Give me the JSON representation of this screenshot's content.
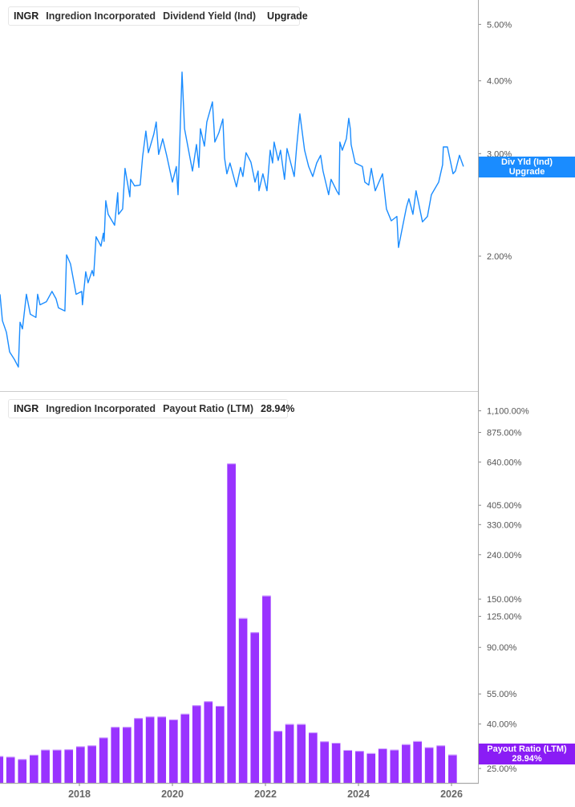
{
  "top_legend": {
    "ticker": "INGR",
    "company": "Ingredion Incorporated",
    "metric": "Dividend Yield (Ind)",
    "value": "Upgrade",
    "color": "#1a8cff"
  },
  "bottom_legend": {
    "ticker": "INGR",
    "company": "Ingredion Incorporated",
    "metric": "Payout Ratio (LTM)",
    "value": "28.94%",
    "color": "#8f2cff"
  },
  "top_tag": {
    "line1": "Div Yld (Ind)",
    "line2": "Upgrade",
    "color": "#1a8cff"
  },
  "bottom_tag": {
    "line1": "Payout Ratio (LTM)",
    "line2": "28.94%",
    "color": "#8a1cf5"
  },
  "chart_data": [
    {
      "type": "line",
      "title": "",
      "scale": "log",
      "series": [
        {
          "name": "Dividend Yield (Ind)",
          "points": [
            [
              "2016-04-17",
              1.72
            ],
            [
              "2016-05-06",
              1.55
            ],
            [
              "2016-06-07",
              1.48
            ],
            [
              "2016-07-02",
              1.37
            ],
            [
              "2016-08-08",
              1.33
            ],
            [
              "2016-09-09",
              1.29
            ],
            [
              "2016-09-22",
              1.54
            ],
            [
              "2016-10-11",
              1.5
            ],
            [
              "2016-11-11",
              1.72
            ],
            [
              "2016-12-12",
              1.59
            ],
            [
              "2017-01-25",
              1.57
            ],
            [
              "2017-02-07",
              1.72
            ],
            [
              "2017-02-26",
              1.65
            ],
            [
              "2017-04-17",
              1.67
            ],
            [
              "2017-05-31",
              1.74
            ],
            [
              "2017-07-02",
              1.69
            ],
            [
              "2017-07-21",
              1.63
            ],
            [
              "2017-09-09",
              1.61
            ],
            [
              "2017-09-22",
              2.01
            ],
            [
              "2017-10-23",
              1.94
            ],
            [
              "2017-12-06",
              1.72
            ],
            [
              "2018-01-19",
              1.74
            ],
            [
              "2018-01-25",
              1.65
            ],
            [
              "2018-02-20",
              1.88
            ],
            [
              "2018-03-10",
              1.8
            ],
            [
              "2018-04-11",
              1.89
            ],
            [
              "2018-04-23",
              1.85
            ],
            [
              "2018-05-12",
              2.16
            ],
            [
              "2018-06-19",
              2.08
            ],
            [
              "2018-07-08",
              2.19
            ],
            [
              "2018-07-14",
              2.12
            ],
            [
              "2018-07-27",
              2.49
            ],
            [
              "2018-08-15",
              2.36
            ],
            [
              "2018-10-04",
              2.26
            ],
            [
              "2018-10-29",
              2.57
            ],
            [
              "2018-11-04",
              2.36
            ],
            [
              "2018-12-06",
              2.41
            ],
            [
              "2018-12-25",
              2.83
            ],
            [
              "2019-02-01",
              2.53
            ],
            [
              "2019-02-07",
              2.71
            ],
            [
              "2019-03-10",
              2.64
            ],
            [
              "2019-04-23",
              2.65
            ],
            [
              "2019-05-12",
              2.96
            ],
            [
              "2019-06-07",
              3.28
            ],
            [
              "2019-06-26",
              3.01
            ],
            [
              "2019-08-08",
              3.24
            ],
            [
              "2019-08-27",
              3.4
            ],
            [
              "2019-09-15",
              2.99
            ],
            [
              "2019-10-17",
              3.18
            ],
            [
              "2019-11-17",
              2.98
            ],
            [
              "2020-01-01",
              2.68
            ],
            [
              "2020-02-01",
              2.85
            ],
            [
              "2020-02-14",
              2.55
            ],
            [
              "2020-03-17",
              4.14
            ],
            [
              "2020-04-05",
              3.31
            ],
            [
              "2020-06-07",
              2.8
            ],
            [
              "2020-07-08",
              3.11
            ],
            [
              "2020-07-27",
              2.84
            ],
            [
              "2020-08-08",
              3.31
            ],
            [
              "2020-09-09",
              3.09
            ],
            [
              "2020-09-28",
              3.4
            ],
            [
              "2020-11-11",
              3.68
            ],
            [
              "2020-11-30",
              3.14
            ],
            [
              "2021-01-01",
              3.26
            ],
            [
              "2021-02-01",
              3.44
            ],
            [
              "2021-02-14",
              2.95
            ],
            [
              "2021-03-04",
              2.77
            ],
            [
              "2021-03-29",
              2.89
            ],
            [
              "2021-05-18",
              2.63
            ],
            [
              "2021-06-19",
              2.84
            ],
            [
              "2021-07-08",
              2.74
            ],
            [
              "2021-08-02",
              3.01
            ],
            [
              "2021-09-09",
              2.9
            ],
            [
              "2021-10-11",
              2.68
            ],
            [
              "2021-11-04",
              2.8
            ],
            [
              "2021-11-11",
              2.59
            ],
            [
              "2021-12-12",
              2.77
            ],
            [
              "2022-01-13",
              2.59
            ],
            [
              "2022-02-07",
              3.04
            ],
            [
              "2022-02-26",
              2.89
            ],
            [
              "2022-03-10",
              3.14
            ],
            [
              "2022-04-11",
              2.92
            ],
            [
              "2022-04-29",
              3.04
            ],
            [
              "2022-05-31",
              2.71
            ],
            [
              "2022-06-19",
              3.06
            ],
            [
              "2022-08-15",
              2.74
            ],
            [
              "2022-09-03",
              3.08
            ],
            [
              "2022-09-28",
              3.51
            ],
            [
              "2022-11-04",
              3.04
            ],
            [
              "2022-12-06",
              2.85
            ],
            [
              "2023-01-07",
              2.74
            ],
            [
              "2023-02-07",
              2.89
            ],
            [
              "2023-03-10",
              2.98
            ],
            [
              "2023-03-29",
              2.8
            ],
            [
              "2023-05-12",
              2.55
            ],
            [
              "2023-05-31",
              2.71
            ],
            [
              "2023-07-14",
              2.59
            ],
            [
              "2023-08-02",
              2.55
            ],
            [
              "2023-08-08",
              3.14
            ],
            [
              "2023-08-27",
              3.04
            ],
            [
              "2023-09-28",
              3.18
            ],
            [
              "2023-10-17",
              3.45
            ],
            [
              "2023-10-29",
              3.31
            ],
            [
              "2023-11-04",
              3.11
            ],
            [
              "2023-12-06",
              2.89
            ],
            [
              "2024-02-01",
              2.85
            ],
            [
              "2024-02-20",
              2.68
            ],
            [
              "2024-03-22",
              2.65
            ],
            [
              "2024-04-11",
              2.83
            ],
            [
              "2024-05-12",
              2.59
            ],
            [
              "2024-07-08",
              2.77
            ],
            [
              "2024-08-08",
              2.41
            ],
            [
              "2024-09-15",
              2.3
            ],
            [
              "2024-10-29",
              2.34
            ],
            [
              "2024-11-11",
              2.07
            ],
            [
              "2024-12-12",
              2.24
            ],
            [
              "2025-01-13",
              2.43
            ],
            [
              "2025-02-01",
              2.51
            ],
            [
              "2025-03-04",
              2.36
            ],
            [
              "2025-03-29",
              2.59
            ],
            [
              "2025-05-18",
              2.29
            ],
            [
              "2025-06-26",
              2.34
            ],
            [
              "2025-07-27",
              2.55
            ],
            [
              "2025-09-22",
              2.68
            ],
            [
              "2025-10-23",
              2.87
            ],
            [
              "2025-10-29",
              3.08
            ],
            [
              "2025-11-30",
              3.08
            ],
            [
              "2026-01-13",
              2.77
            ],
            [
              "2026-02-01",
              2.8
            ],
            [
              "2026-03-04",
              2.98
            ],
            [
              "2026-04-05",
              2.85
            ]
          ]
        }
      ],
      "y_ticks": [
        {
          "value": 5,
          "label": "5.00%"
        },
        {
          "value": 4,
          "label": "4.00%"
        },
        {
          "value": 3,
          "label": "3.00%"
        },
        {
          "value": 2,
          "label": "2.00%"
        }
      ],
      "ylim": [
        1.25,
        5.6
      ],
      "grid": false
    },
    {
      "type": "bar",
      "title": "",
      "scale": "log",
      "series": [
        {
          "name": "Payout Ratio (LTM)",
          "categories": [
            "2016-03-31",
            "2016-06-30",
            "2016-09-30",
            "2016-12-31",
            "2017-03-31",
            "2017-06-30",
            "2017-09-30",
            "2017-12-31",
            "2018-03-31",
            "2018-06-30",
            "2018-09-30",
            "2018-12-31",
            "2019-03-31",
            "2019-06-30",
            "2019-09-30",
            "2019-12-31",
            "2020-03-31",
            "2020-06-30",
            "2020-09-30",
            "2020-12-31",
            "2021-03-31",
            "2021-06-30",
            "2021-09-30",
            "2021-12-31",
            "2022-03-31",
            "2022-06-30",
            "2022-09-30",
            "2022-12-31",
            "2023-03-31",
            "2023-06-30",
            "2023-09-30",
            "2023-12-31",
            "2024-03-31",
            "2024-06-30",
            "2024-09-30",
            "2024-12-31",
            "2025-03-31",
            "2025-06-30",
            "2025-09-30",
            "2025-12-31"
          ],
          "values": [
            28.5,
            28.3,
            27.6,
            28.9,
            30.5,
            30.5,
            30.6,
            31.6,
            31.9,
            34.7,
            38.8,
            38.8,
            42.6,
            43.3,
            43.3,
            42.0,
            44.6,
            48.8,
            50.9,
            48.5,
            630,
            122.7,
            105.7,
            155.7,
            37.2,
            40.0,
            40.0,
            36.6,
            33.3,
            32.8,
            30.4,
            30.1,
            29.4,
            30.9,
            30.5,
            32.3,
            33.4,
            31.3,
            31.9,
            28.94
          ]
        }
      ],
      "y_ticks": [
        {
          "value": 1100,
          "label": "1,100.00%"
        },
        {
          "value": 875,
          "label": "875.00%"
        },
        {
          "value": 640,
          "label": "640.00%"
        },
        {
          "value": 405,
          "label": "405.00%"
        },
        {
          "value": 330,
          "label": "330.00%"
        },
        {
          "value": 240,
          "label": "240.00%"
        },
        {
          "value": 150,
          "label": "150.00%"
        },
        {
          "value": 125,
          "label": "125.00%"
        },
        {
          "value": 90,
          "label": "90.00%"
        },
        {
          "value": 55,
          "label": "55.00%"
        },
        {
          "value": 40,
          "label": "40.00%"
        },
        {
          "value": 25,
          "label": "25.00%"
        }
      ],
      "x_ticks": [
        {
          "value": "2018-01-01",
          "label": "2018"
        },
        {
          "value": "2020-01-01",
          "label": "2020"
        },
        {
          "value": "2022-01-01",
          "label": "2022"
        },
        {
          "value": "2024-01-01",
          "label": "2024"
        },
        {
          "value": "2026-01-01",
          "label": "2026"
        }
      ],
      "ylim": [
        21.4,
        1400
      ],
      "grid": false
    }
  ]
}
